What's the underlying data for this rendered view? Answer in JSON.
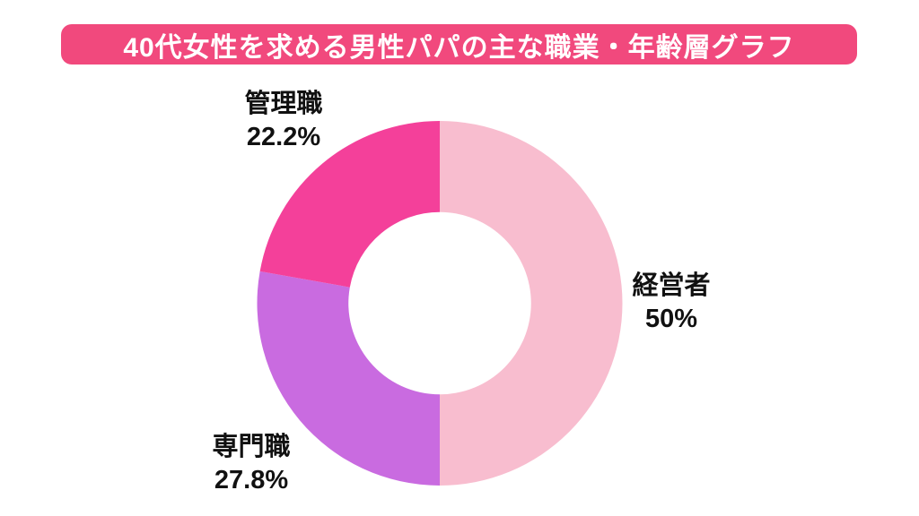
{
  "title": "40代女性を求める男性パパの主な職業・年齢層グラフ",
  "colors": {
    "banner_background": "#F1497D",
    "banner_text": "#FFFFFF",
    "label_text": "#111111",
    "background": "#FFFFFF"
  },
  "chart_data": {
    "type": "pie",
    "variant": "donut",
    "title": "40代女性を求める男性パパの主な職業・年齢層グラフ",
    "start_angle_deg": 0,
    "direction": "clockwise",
    "inner_radius_ratio": 0.5,
    "legend_position": "none",
    "grid": false,
    "segments": [
      {
        "label": "経営者",
        "value_pct": 50,
        "value_label": "50%",
        "color": "#F8BDCF"
      },
      {
        "label": "専門職",
        "value_pct": 27.8,
        "value_label": "27.8%",
        "color": "#C96BE0"
      },
      {
        "label": "管理職",
        "value_pct": 22.2,
        "value_label": "22.2%",
        "color": "#F4409A"
      }
    ]
  }
}
